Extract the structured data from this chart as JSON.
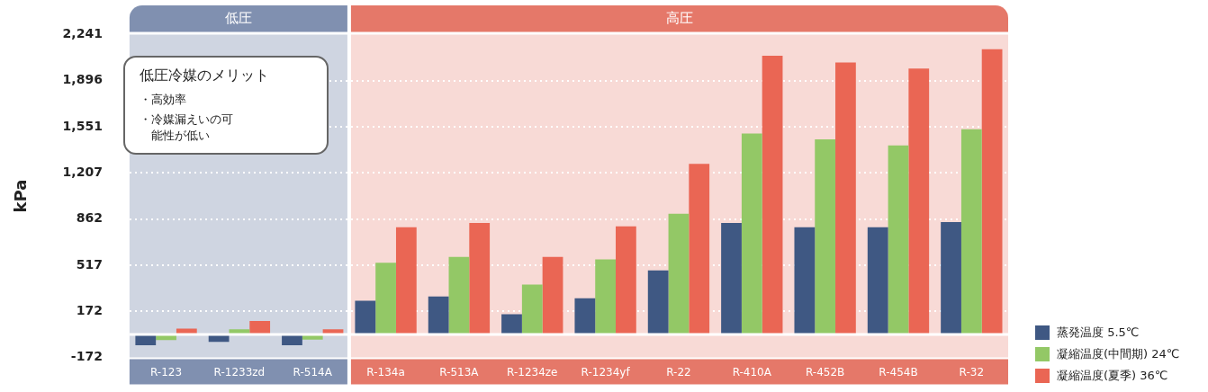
{
  "chart_data": {
    "type": "bar",
    "ylabel": "kPa",
    "categories": [
      "R-123",
      "R-1233zd",
      "R-514A",
      "R-134a",
      "R-513A",
      "R-1234ze",
      "R-1234yf",
      "R-22",
      "R-410A",
      "R-452B",
      "R-454B",
      "R-32"
    ],
    "series": [
      {
        "name": "蒸発温度 5.5℃",
        "color": "#3f5883",
        "values": [
          -80,
          -55,
          -80,
          252,
          284,
          151,
          271,
          479,
          833,
          801,
          801,
          839
        ]
      },
      {
        "name": "凝縮温度(中間期) 24℃",
        "color": "#93c866",
        "values": [
          -42,
          38,
          -38,
          536,
          580,
          372,
          561,
          902,
          1502,
          1457,
          1413,
          1533
        ]
      },
      {
        "name": "凝縮温度(夏季) 36℃",
        "color": "#ea6654",
        "values": [
          44,
          101,
          38,
          801,
          833,
          580,
          808,
          1274,
          2082,
          2032,
          1987,
          2132
        ]
      }
    ],
    "ylim": [
      -172,
      2241
    ],
    "yticks": [
      {
        "value": -172,
        "label": "-172"
      },
      {
        "value": 172,
        "label": "172"
      },
      {
        "value": 517,
        "label": "517"
      },
      {
        "value": 862,
        "label": "862"
      },
      {
        "value": 1207,
        "label": "1,207"
      },
      {
        "value": 1551,
        "label": "1,551"
      },
      {
        "value": 1896,
        "label": "1,896"
      },
      {
        "value": 2241,
        "label": "2,241"
      }
    ],
    "grid": "y",
    "legend": "bottom right",
    "bands": [
      {
        "axis": "x",
        "from": "R-123",
        "to": "R-514A",
        "label": "低圧",
        "color": "#cfd5e1"
      },
      {
        "axis": "x",
        "from": "R-134a",
        "to": "R-32",
        "label": "高圧",
        "color": "#f8dad6"
      }
    ],
    "annotations": [
      "低圧冷媒のメリット",
      "・高効率",
      "・冷媒漏えいの可能性が低い"
    ]
  }
}
